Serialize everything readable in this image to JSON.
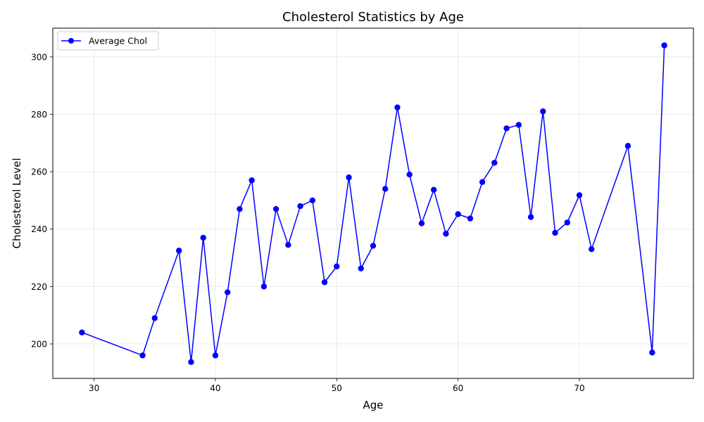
{
  "chart_data": {
    "type": "line",
    "title": "Cholesterol Statistics by Age",
    "xlabel": "Age",
    "ylabel": "Cholesterol Level",
    "xlim": [
      26.6,
      79.4
    ],
    "ylim": [
      188,
      310
    ],
    "xticks": [
      30,
      40,
      50,
      60,
      70
    ],
    "yticks": [
      200,
      220,
      240,
      260,
      280,
      300
    ],
    "grid": true,
    "legend": "top-left",
    "series": [
      {
        "name": "Average Chol",
        "color": "#0000ff",
        "marker": "circle",
        "x": [
          29,
          34,
          35,
          37,
          38,
          39,
          40,
          41,
          42,
          43,
          44,
          45,
          46,
          47,
          48,
          49,
          50,
          51,
          52,
          53,
          54,
          55,
          56,
          57,
          58,
          59,
          60,
          61,
          62,
          63,
          64,
          65,
          66,
          67,
          68,
          69,
          70,
          71,
          74,
          76,
          77
        ],
        "y": [
          204,
          196,
          209,
          232.5,
          193.7,
          237,
          196,
          218,
          247,
          257,
          220,
          247,
          234.5,
          248,
          250,
          221.5,
          227,
          258,
          226.3,
          234.2,
          254,
          282.4,
          259,
          242,
          253.7,
          238.4,
          245.2,
          243.7,
          256.4,
          263.1,
          275.1,
          276.3,
          244.2,
          281,
          238.7,
          242.3,
          251.8,
          233,
          269,
          197,
          304
        ]
      }
    ]
  }
}
